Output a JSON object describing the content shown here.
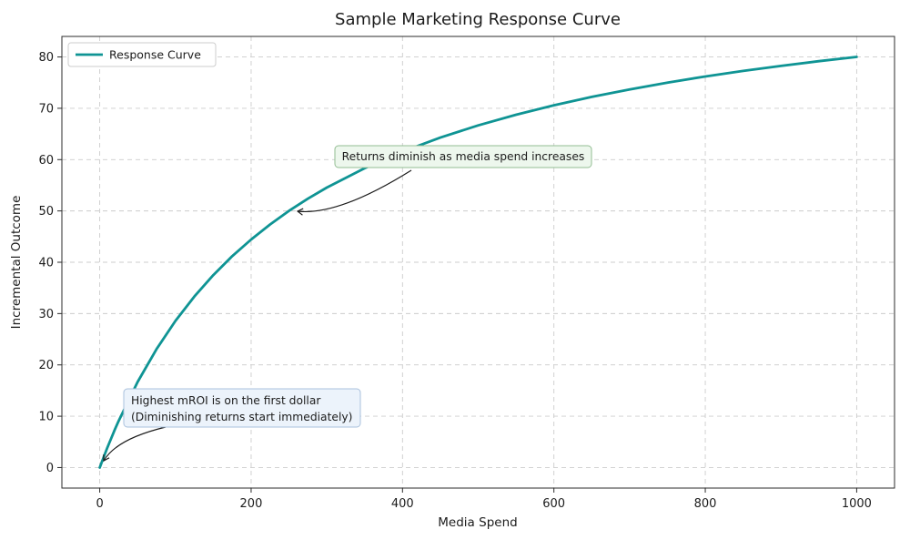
{
  "colors": {
    "curve": "#0f9494",
    "annotation_diminish_bg": "#edf7ed",
    "annotation_mroi_bg": "#ecf3fb"
  },
  "chart_data": {
    "type": "line",
    "title": "Sample Marketing Response Curve",
    "xlabel": "Media Spend",
    "ylabel": "Incremental Outcome",
    "xlim": [
      -50,
      1050
    ],
    "ylim": [
      -4,
      84
    ],
    "xticks": [
      0,
      200,
      400,
      600,
      800,
      1000
    ],
    "yticks": [
      0,
      10,
      20,
      30,
      40,
      50,
      60,
      70,
      80
    ],
    "grid": true,
    "grid_style": "dashed",
    "legend_position": "upper left",
    "series": [
      {
        "name": "Response Curve",
        "x": [
          0,
          5,
          10,
          15,
          20,
          25,
          50,
          75,
          100,
          125,
          150,
          175,
          200,
          225,
          250,
          275,
          300,
          350,
          400,
          450,
          500,
          550,
          600,
          650,
          700,
          750,
          800,
          850,
          900,
          950,
          1000
        ],
        "y": [
          0,
          1.96,
          3.85,
          5.66,
          7.41,
          9.09,
          16.67,
          23.08,
          28.57,
          33.33,
          37.5,
          41.18,
          44.44,
          47.37,
          50,
          52.38,
          54.55,
          58.33,
          61.54,
          64.29,
          66.67,
          68.75,
          70.59,
          72.22,
          73.68,
          75,
          76.19,
          77.27,
          78.26,
          79.17,
          80
        ]
      }
    ],
    "annotations": [
      {
        "lines": [
          "Returns diminish as media spend increases"
        ],
        "xy": [
          250,
          50
        ]
      },
      {
        "lines": [
          "Highest mROI is on the first dollar",
          "(Diminishing returns start immediately)"
        ],
        "xy": [
          0,
          0
        ]
      }
    ]
  }
}
